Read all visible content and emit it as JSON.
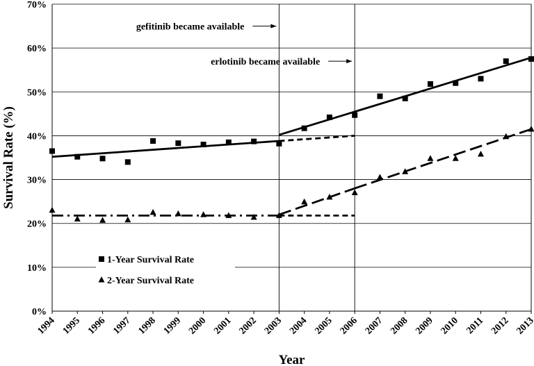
{
  "chart_data": {
    "type": "scatter",
    "title": "",
    "xlabel": "Year",
    "ylabel": "Survival Rate (%)",
    "xlim": [
      1994,
      2013
    ],
    "ylim": [
      0,
      70
    ],
    "x_ticks": [
      "1994",
      "1995",
      "1996",
      "1997",
      "1998",
      "1999",
      "2000",
      "2001",
      "2002",
      "2003",
      "2004",
      "2005",
      "2006",
      "2007",
      "2008",
      "2009",
      "2010",
      "2011",
      "2012",
      "2013"
    ],
    "y_ticks": [
      "0%",
      "10%",
      "20%",
      "30%",
      "40%",
      "50%",
      "60%",
      "70%"
    ],
    "y_tick_values": [
      0,
      10,
      20,
      30,
      40,
      50,
      60,
      70
    ],
    "grid": "horizontal",
    "legend_position": "bottom-left",
    "series": [
      {
        "name": "1-Year Survival Rate",
        "marker": "square",
        "x": [
          1994,
          1995,
          1996,
          1997,
          1998,
          1999,
          2000,
          2001,
          2002,
          2003,
          2004,
          2005,
          2006,
          2007,
          2008,
          2009,
          2010,
          2011,
          2012,
          2013
        ],
        "values": [
          36.5,
          35.2,
          34.8,
          34.0,
          38.8,
          38.3,
          38.0,
          38.5,
          38.7,
          38.2,
          41.7,
          44.2,
          44.7,
          49.0,
          48.5,
          51.8,
          52.0,
          53.0,
          57.0,
          57.5
        ]
      },
      {
        "name": "2-Year Survival Rate",
        "marker": "triangle",
        "x": [
          1994,
          1995,
          1996,
          1997,
          1998,
          1999,
          2000,
          2001,
          2002,
          2003,
          2004,
          2005,
          2006,
          2007,
          2008,
          2009,
          2010,
          2011,
          2012,
          2013
        ],
        "values": [
          23.0,
          21.0,
          20.7,
          20.8,
          22.5,
          22.2,
          22.0,
          21.8,
          21.4,
          21.8,
          24.9,
          26.0,
          27.0,
          30.5,
          31.8,
          34.8,
          34.8,
          35.8,
          39.8,
          41.5
        ]
      }
    ],
    "trend_lines": [
      {
        "series": "1-Year Survival Rate",
        "style": "solid",
        "from": [
          1994,
          35.2
        ],
        "to": [
          2003,
          38.8
        ]
      },
      {
        "series": "1-Year Survival Rate",
        "style": "dashed",
        "from": [
          2003,
          38.8
        ],
        "to": [
          2006,
          40.0
        ]
      },
      {
        "series": "1-Year Survival Rate",
        "style": "solid",
        "from": [
          2003,
          40.2
        ],
        "to": [
          2013,
          57.8
        ]
      },
      {
        "series": "2-Year Survival Rate",
        "style": "dash-dot",
        "from": [
          1994,
          21.8
        ],
        "to": [
          2003,
          21.8
        ]
      },
      {
        "series": "2-Year Survival Rate",
        "style": "dashed",
        "from": [
          2003,
          21.8
        ],
        "to": [
          2006,
          21.8
        ]
      },
      {
        "series": "2-Year Survival Rate",
        "style": "long-dash",
        "from": [
          2003,
          22.0
        ],
        "to": [
          2006,
          28.0
        ]
      },
      {
        "series": "2-Year Survival Rate",
        "style": "long-dash",
        "from": [
          2006,
          28.0
        ],
        "to": [
          2013,
          41.5
        ]
      }
    ],
    "annotations": [
      {
        "text": "gefitinib became available",
        "x": 2003,
        "y": 65,
        "arrow": true,
        "vertical_line": true
      },
      {
        "text": "erlotinib became available",
        "x": 2006,
        "y": 57,
        "arrow": true,
        "vertical_line": true
      }
    ]
  }
}
